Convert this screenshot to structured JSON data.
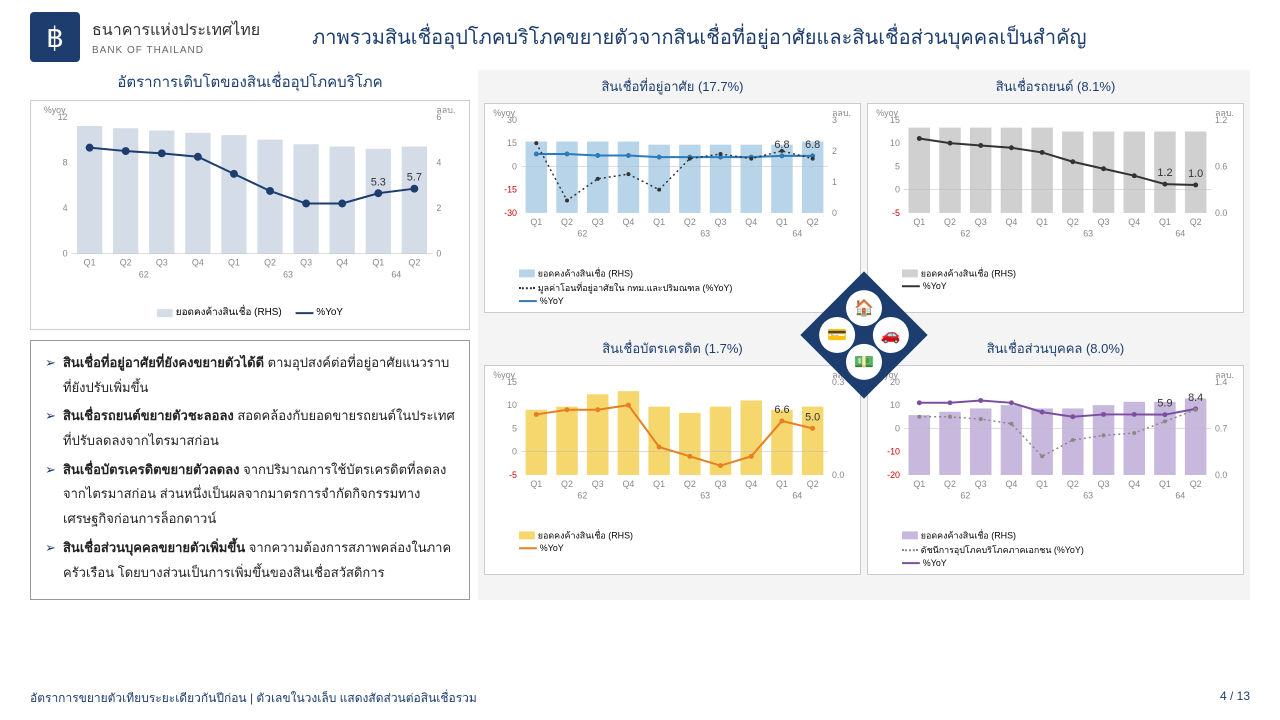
{
  "bank": {
    "th": "ธนาคารแห่งประเทศไทย",
    "en": "BANK OF THAILAND"
  },
  "title": "ภาพรวมสินเชื่ออุปโภคบริโภคขยายตัวจากสินเชื่อที่อยู่อาศัยและสินเชื่อส่วนบุคคลเป็นสำคัญ",
  "main_chart": {
    "title": "อัตราการเติบโตของสินเชื่ออุปโภคบริโภค",
    "y_left_label": "%yoy",
    "y_right_label": "ลลบ.",
    "y_left_ticks": [
      0,
      4,
      8,
      12
    ],
    "y_right_ticks": [
      0,
      2,
      4,
      6
    ],
    "x_labels": [
      "Q1",
      "Q2",
      "Q3",
      "Q4",
      "Q1",
      "Q2",
      "Q3",
      "Q4",
      "Q1",
      "Q2"
    ],
    "year_groups": [
      "62",
      "63",
      "64"
    ],
    "bars": [
      5.6,
      5.5,
      5.4,
      5.3,
      5.2,
      5.0,
      4.8,
      4.7,
      4.6,
      4.7
    ],
    "bar_max": 6,
    "bar_color": "#d4dce8",
    "line": [
      9.3,
      9.0,
      8.8,
      8.5,
      7.0,
      5.5,
      4.4,
      4.4,
      5.3,
      5.7
    ],
    "line_max": 12,
    "line_color": "#1c3d6e",
    "annotations": [
      {
        "i": 8,
        "v": "5.3"
      },
      {
        "i": 9,
        "v": "5.7"
      }
    ],
    "legend_bar": "ยอดคงค้างสินเชื่อ (RHS)",
    "legend_line": "%YoY"
  },
  "bullets": [
    {
      "b": "สินเชื่อที่อยู่อาศัยที่ยังคงขยายตัวได้ดี",
      "t": " ตามอุปสงค์ต่อที่อยู่อาศัยแนวราบที่ยังปรับเพิ่มขึ้น"
    },
    {
      "b": "สินเชื่อรถยนต์ขยายตัวชะลอลง",
      "t": " สอดคล้องกับยอดขายรถยนต์ในประเทศที่ปรับลดลงจากไตรมาสก่อน"
    },
    {
      "b": "สินเชื่อบัตรเครดิตขยายตัวลดลง",
      "t": " จากปริมาณการใช้บัตรเครดิตที่ลดลงจากไตรมาสก่อน ส่วนหนึ่งเป็นผลจากมาตรการจำกัดกิจกรรมทางเศรษฐกิจก่อนการล็อกดาวน์"
    },
    {
      "b": "สินเชื่อส่วนบุคคลขยายตัวเพิ่มขึ้น",
      "t": " จากความต้องการสภาพคล่องในภาคครัวเรือน โดยบางส่วนเป็นการเพิ่มขึ้นของสินเชื่อสวัสดิการ"
    }
  ],
  "mini": [
    {
      "title": "สินเชื่อที่อยู่อาศัย (17.7%)",
      "y_left": "%yoy",
      "y_right": "ลลบ.",
      "y_left_ticks": [
        -30,
        -15,
        0,
        15,
        30
      ],
      "y_right_ticks": [
        0,
        1,
        2,
        3
      ],
      "left_min": -30,
      "left_max": 30,
      "bars": [
        2.3,
        2.3,
        2.3,
        2.3,
        2.2,
        2.2,
        2.2,
        2.2,
        2.2,
        2.3
      ],
      "bar_max": 3,
      "bar_color": "#b8d4e8",
      "line": [
        8,
        8,
        7,
        7,
        6,
        6,
        6,
        6,
        6.8,
        6.8
      ],
      "line_color": "#2b7bba",
      "line2": [
        15,
        -22,
        -8,
        -5,
        -15,
        5,
        8,
        5,
        10,
        5
      ],
      "line2_color": "#333",
      "line2_style": "dotted",
      "ann": [
        {
          "i": 8,
          "v": "6.8",
          "c": "#2b7bba"
        },
        {
          "i": 9,
          "v": "6.8",
          "c": "#2b7bba"
        }
      ],
      "legends": [
        {
          "t": "ยอดคงค้างสินเชื่อ (RHS)",
          "c": "#b8d4e8",
          "type": "bar"
        },
        {
          "t": "มูลค่าโอนที่อยู่อาศัยใน กทม.และปริมณฑล (%YoY)",
          "c": "#333",
          "type": "dot"
        },
        {
          "t": "%YoY",
          "c": "#2b7bba",
          "type": "line"
        }
      ]
    },
    {
      "title": "สินเชื่อรถยนต์ (8.1%)",
      "y_left": "%yoy",
      "y_right": "ลลบ.",
      "y_left_ticks": [
        -5,
        0,
        5,
        10,
        15
      ],
      "y_right_ticks": [
        "0.0",
        "0.6",
        "1.2"
      ],
      "left_min": -5,
      "left_max": 15,
      "bars": [
        1.1,
        1.1,
        1.1,
        1.1,
        1.1,
        1.05,
        1.05,
        1.05,
        1.05,
        1.05
      ],
      "bar_max": 1.2,
      "bar_color": "#d0d0d0",
      "line": [
        11,
        10,
        9.5,
        9,
        8,
        6,
        4.5,
        3,
        1.2,
        1.0
      ],
      "line_color": "#333",
      "ann": [
        {
          "i": 8,
          "v": "1.2",
          "c": "#333"
        },
        {
          "i": 9,
          "v": "1.0",
          "c": "#333"
        }
      ],
      "legends": [
        {
          "t": "ยอดคงค้างสินเชื่อ (RHS)",
          "c": "#d0d0d0",
          "type": "bar"
        },
        {
          "t": "%YoY",
          "c": "#333",
          "type": "line"
        }
      ]
    },
    {
      "title": "สินเชื่อบัตรเครดิต (1.7%)",
      "y_left": "%yoy",
      "y_right": "ลลบ.",
      "y_left_ticks": [
        -5,
        0,
        5,
        10,
        15
      ],
      "y_right_ticks": [
        "0.0",
        "0.3"
      ],
      "left_min": -5,
      "left_max": 15,
      "bars": [
        0.21,
        0.22,
        0.26,
        0.27,
        0.22,
        0.2,
        0.22,
        0.24,
        0.21,
        0.22
      ],
      "bar_max": 0.3,
      "bar_color": "#f5d76e",
      "line": [
        8,
        9,
        9,
        10,
        1,
        -1,
        -3,
        -1,
        6.6,
        5.0
      ],
      "line_color": "#e67e22",
      "ann": [
        {
          "i": 8,
          "v": "6.6",
          "c": "#e67e22"
        },
        {
          "i": 9,
          "v": "5.0",
          "c": "#e67e22"
        }
      ],
      "legends": [
        {
          "t": "ยอดคงค้างสินเชื่อ (RHS)",
          "c": "#f5d76e",
          "type": "bar"
        },
        {
          "t": "%YoY",
          "c": "#e67e22",
          "type": "line"
        }
      ]
    },
    {
      "title": "สินเชื่อส่วนบุคคล (8.0%)",
      "y_left": "%yoy",
      "y_right": "ลลบ.",
      "y_left_ticks": [
        -20,
        -10,
        0,
        10,
        20
      ],
      "y_right_ticks": [
        "0.0",
        "0.7",
        "1.4"
      ],
      "left_min": -20,
      "left_max": 20,
      "bars": [
        0.9,
        0.95,
        1.0,
        1.05,
        1.0,
        1.0,
        1.05,
        1.1,
        1.1,
        1.15
      ],
      "bar_max": 1.4,
      "bar_color": "#c8b8dd",
      "line": [
        11,
        11,
        12,
        11,
        7,
        5,
        6,
        6,
        5.9,
        8.4
      ],
      "line_color": "#7b4fa0",
      "line2": [
        5,
        5,
        4,
        2,
        -12,
        -5,
        -3,
        -2,
        3,
        8
      ],
      "line2_color": "#888",
      "line2_style": "dotted",
      "ann": [
        {
          "i": 8,
          "v": "5.9",
          "c": "#7b4fa0"
        },
        {
          "i": 9,
          "v": "8.4",
          "c": "#333"
        }
      ],
      "legends": [
        {
          "t": "ยอดคงค้างสินเชื่อ (RHS)",
          "c": "#c8b8dd",
          "type": "bar"
        },
        {
          "t": "ดัชนีการอุปโภคบริโภคภาคเอกชน (%YoY)",
          "c": "#888",
          "type": "dot"
        },
        {
          "t": "%YoY",
          "c": "#7b4fa0",
          "type": "line"
        }
      ]
    }
  ],
  "x_labels": [
    "Q1",
    "Q2",
    "Q3",
    "Q4",
    "Q1",
    "Q2",
    "Q3",
    "Q4",
    "Q1",
    "Q2"
  ],
  "year_groups": [
    "62",
    "63",
    "64"
  ],
  "footer_left": "อัตราการขยายตัวเทียบระยะเดียวกันปีก่อน | ตัวเลขในวงเล็บ แสดงสัดส่วนต่อสินเชื่อรวม",
  "footer_right": "4 / 13"
}
